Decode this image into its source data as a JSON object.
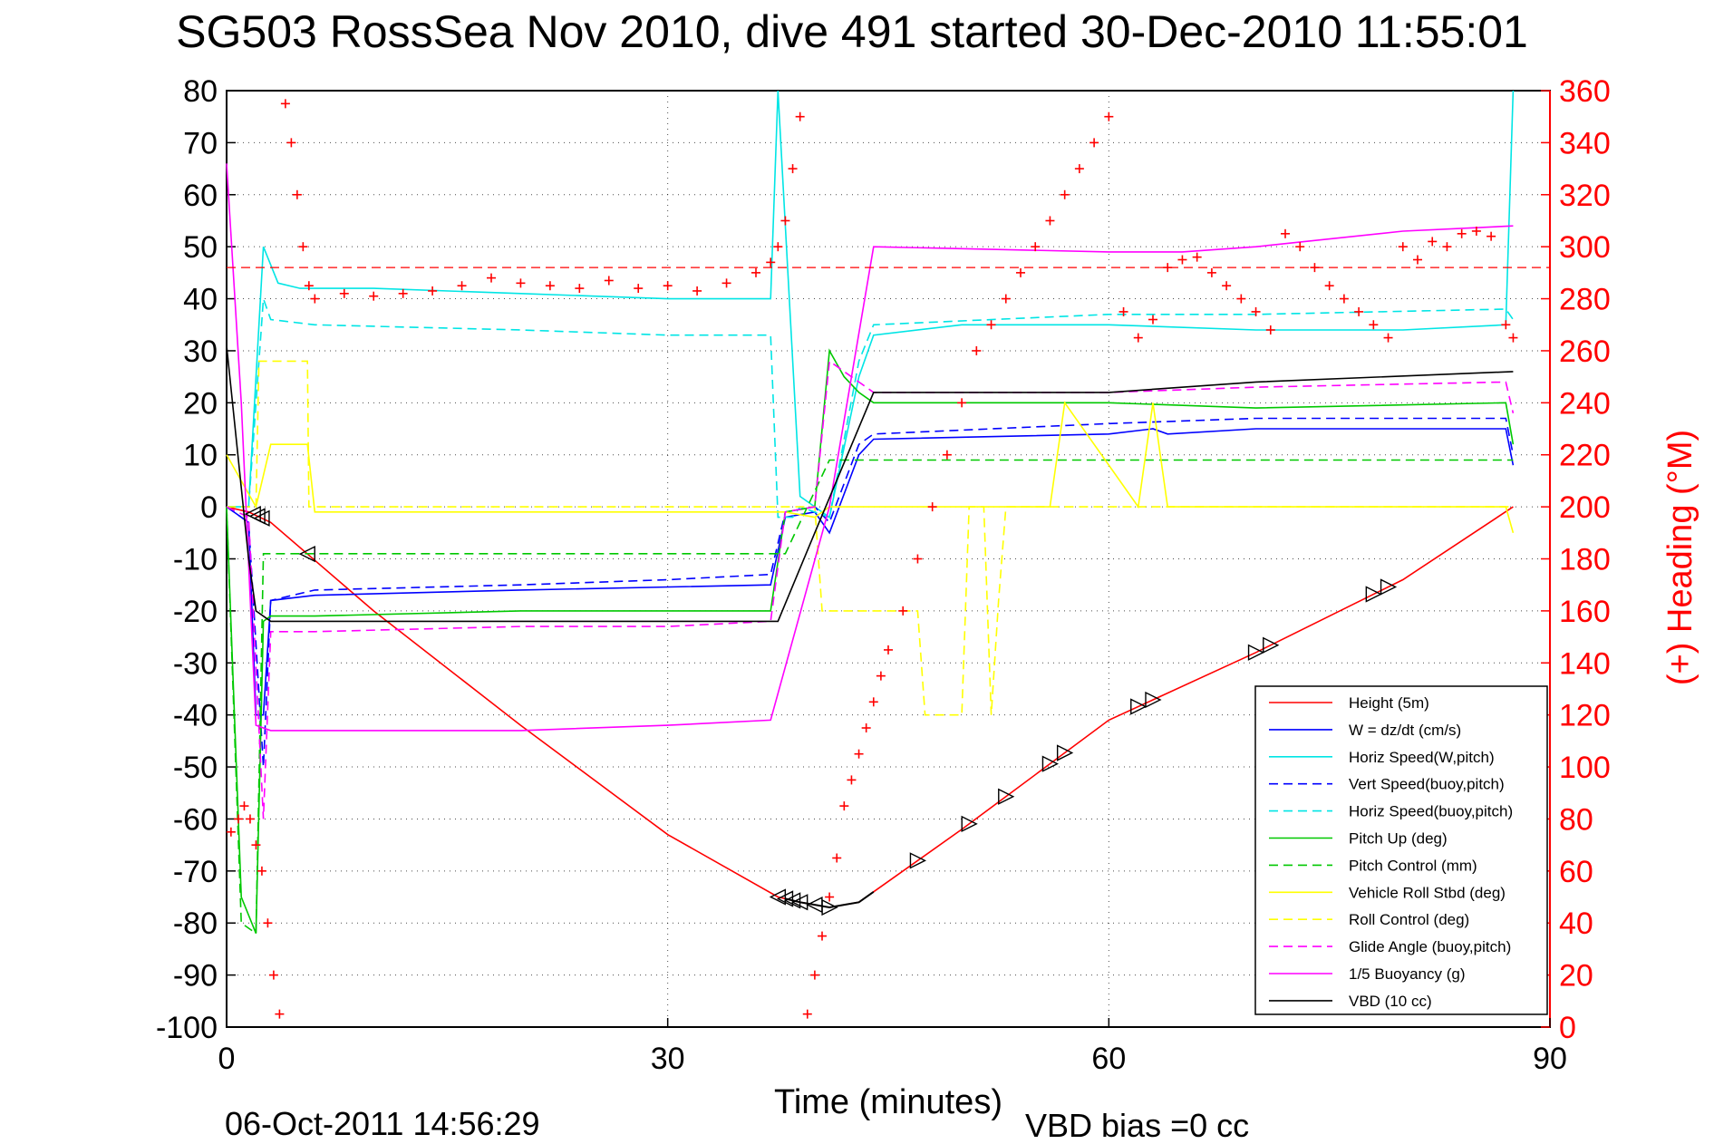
{
  "chart_data": {
    "type": "line",
    "title": "SG503 RossSea Nov 2010, dive 491 started 30-Dec-2010 11:55:01",
    "xlabel": "Time (minutes)",
    "ylabel_right": "(+) Heading (°M)",
    "footer_date": "06-Oct-2011 14:56:29",
    "footer_note": "VBD bias =0 cc",
    "xlim": [
      0,
      90
    ],
    "ylim": [
      -100,
      80
    ],
    "ylim_right": [
      0,
      360
    ],
    "x_ticks": [
      "0",
      "30",
      "60",
      "90"
    ],
    "y_ticks": [
      "80",
      "70",
      "60",
      "50",
      "40",
      "30",
      "20",
      "10",
      "0",
      "-10",
      "-20",
      "-30",
      "-40",
      "-50",
      "-60",
      "-70",
      "-80",
      "-90",
      "-100"
    ],
    "y_ticks_right": [
      "360",
      "340",
      "320",
      "300",
      "280",
      "260",
      "240",
      "220",
      "200",
      "180",
      "160",
      "140",
      "120",
      "100",
      "80",
      "60",
      "40",
      "20",
      "0"
    ],
    "grid": true,
    "legend_position": "bottom-right",
    "colors": {
      "height": "#ff0000",
      "w": "#0000ff",
      "horiz": "#00e5e5",
      "vert_buoy": "#0000ff",
      "horiz_buoy": "#00e5e5",
      "pitch": "#00c800",
      "pitch_ctrl": "#00c800",
      "roll": "#ffff00",
      "roll_ctrl": "#ffff00",
      "glide": "#ff00ff",
      "buoyancy": "#ff00ff",
      "vbd": "#000000",
      "heading": "#ff0000"
    },
    "legend": [
      "Height (5m)",
      "W = dz/dt (cm/s)",
      "Horiz Speed(W,pitch)",
      "Vert Speed(buoy,pitch)",
      "Horiz Speed(buoy,pitch)",
      "Pitch Up (deg)",
      "Pitch Control (mm)",
      "Vehicle Roll Stbd (deg)",
      "Roll Control (deg)",
      "Glide Angle (buoy,pitch)",
      "1/5 Buoyancy (g)",
      "VBD (10 cc)"
    ],
    "series": [
      {
        "name": "Height (5m)",
        "style": "solid",
        "color": "height",
        "x": [
          0,
          1.5,
          3,
          10,
          20,
          30,
          37.5,
          39,
          41,
          43,
          44,
          50,
          60,
          70,
          80,
          87.5
        ],
        "y": [
          0,
          -1,
          -3,
          -20,
          -42,
          -63,
          -75,
          -76,
          -77,
          -76,
          -74,
          -62,
          -41,
          -28,
          -14,
          0
        ]
      },
      {
        "name": "W = dz/dt (cm/s)",
        "style": "solid",
        "color": "w",
        "x": [
          0,
          1.5,
          2,
          2.5,
          3,
          6,
          20,
          37,
          38,
          40,
          41,
          43,
          44,
          60,
          63,
          64,
          70,
          87,
          87.5
        ],
        "y": [
          0,
          -3,
          -40,
          -40,
          -18,
          -17,
          -16,
          -15,
          -2,
          -1,
          -5,
          10,
          13,
          14,
          15,
          14,
          15,
          15,
          8
        ]
      },
      {
        "name": "Horiz Speed(W,pitch)",
        "style": "solid",
        "color": "horiz",
        "x": [
          0,
          1.5,
          2.5,
          3.5,
          5,
          10,
          20,
          30,
          37,
          37.5,
          39,
          40,
          41,
          43,
          44,
          50,
          60,
          70,
          80,
          87,
          87.5
        ],
        "y": [
          0,
          0,
          50,
          43,
          42,
          42,
          41,
          40,
          40,
          80,
          2,
          0,
          -2,
          25,
          33,
          35,
          35,
          34,
          34,
          35,
          80
        ]
      },
      {
        "name": "Vert Speed(buoy,pitch)",
        "style": "dashed",
        "color": "vert_buoy",
        "x": [
          0,
          1.5,
          2.5,
          3,
          6,
          20,
          30,
          37,
          38,
          40,
          41,
          43,
          44,
          60,
          70,
          87,
          87.5
        ],
        "y": [
          0,
          -3,
          -50,
          -18,
          -16,
          -15,
          -14,
          -13,
          -1,
          0,
          -3,
          12,
          14,
          16,
          17,
          17,
          10
        ]
      },
      {
        "name": "Horiz Speed(buoy,pitch)",
        "style": "dashed",
        "color": "horiz_buoy",
        "x": [
          0,
          1.5,
          2.5,
          3,
          6,
          20,
          30,
          37,
          37.5,
          38.5,
          39,
          41,
          43,
          44,
          60,
          70,
          87,
          87.5
        ],
        "y": [
          0,
          0,
          40,
          36,
          35,
          34,
          33,
          33,
          -2,
          -2,
          0,
          -2,
          28,
          35,
          37,
          37,
          38,
          36
        ]
      },
      {
        "name": "Pitch Up (deg)",
        "style": "solid",
        "color": "pitch",
        "x": [
          0,
          1,
          2,
          2.5,
          3,
          6,
          20,
          30,
          37,
          38,
          40,
          41,
          42,
          43,
          44,
          60,
          70,
          87,
          87.5
        ],
        "y": [
          0,
          -75,
          -82,
          -22,
          -21,
          -21,
          -20,
          -20,
          -20,
          -1,
          0,
          30,
          25,
          22,
          20,
          20,
          19,
          20,
          12
        ]
      },
      {
        "name": "Pitch Control (mm)",
        "style": "dashed",
        "color": "pitch_ctrl",
        "x": [
          0,
          1,
          2,
          2.5,
          3,
          37,
          38,
          41,
          87.5
        ],
        "y": [
          0,
          -80,
          -82,
          -9,
          -9,
          -9,
          -9,
          9,
          9
        ]
      },
      {
        "name": "Vehicle Roll Stbd (deg)",
        "style": "solid",
        "color": "roll",
        "x": [
          0,
          2,
          3,
          5.5,
          6,
          37,
          38,
          40,
          41,
          44,
          53,
          54,
          56,
          57,
          62,
          63,
          64,
          87,
          87.5
        ],
        "y": [
          10,
          0,
          12,
          12,
          -1,
          -1,
          -1,
          -2,
          0,
          0,
          0,
          0,
          0,
          20,
          0,
          20,
          0,
          0,
          -5
        ]
      },
      {
        "name": "Roll Control (deg)",
        "style": "dashed",
        "color": "roll_ctrl",
        "x": [
          0,
          2,
          2.2,
          5.5,
          5.6,
          37,
          40,
          40.5,
          43,
          47,
          47.5,
          50,
          50.5,
          51.5,
          52,
          52.5,
          53,
          56,
          57,
          87.5
        ],
        "y": [
          0,
          0,
          28,
          28,
          0,
          0,
          0,
          -20,
          -20,
          -20,
          -40,
          -40,
          0,
          0,
          -40,
          -18,
          0,
          0,
          0,
          0
        ]
      },
      {
        "name": "Glide Angle (buoy,pitch)",
        "style": "dashed",
        "color": "glide",
        "x": [
          0,
          1.5,
          2.5,
          3,
          6,
          20,
          30,
          37,
          38,
          40,
          41,
          43,
          44,
          60,
          70,
          87,
          87.5
        ],
        "y": [
          0,
          -2,
          -60,
          -24,
          -24,
          -23,
          -23,
          -22,
          -1,
          0,
          28,
          24,
          22,
          22,
          23,
          24,
          18
        ]
      },
      {
        "name": "1/5 Buoyancy (g)",
        "style": "solid",
        "color": "buoyancy",
        "x": [
          0,
          1,
          2,
          3,
          10,
          20,
          30,
          37,
          41,
          44,
          60,
          65,
          70,
          80,
          87.5
        ],
        "y": [
          66,
          20,
          -42,
          -43,
          -43,
          -43,
          -42,
          -41,
          0,
          50,
          49,
          49,
          50,
          53,
          54
        ]
      },
      {
        "name": "VBD (10 cc)",
        "style": "solid",
        "color": "vbd",
        "x": [
          0,
          1.5,
          2,
          3,
          20,
          37,
          37.5,
          40,
          44,
          60,
          70,
          87.5
        ],
        "y": [
          31,
          -10,
          -20,
          -22,
          -22,
          -22,
          -22,
          -5,
          22,
          22,
          24,
          26
        ]
      }
    ],
    "heading": {
      "name": "(+) Heading (°M)",
      "reference": 292,
      "x": [
        0.3,
        0.8,
        1.2,
        1.6,
        2.0,
        2.4,
        2.8,
        3.2,
        3.6,
        4.0,
        4.4,
        4.8,
        5.2,
        5.6,
        6,
        8,
        10,
        12,
        14,
        16,
        18,
        20,
        22,
        24,
        26,
        28,
        30,
        32,
        34,
        36,
        37,
        37.5,
        38,
        38.5,
        39,
        39.5,
        40,
        40.5,
        41,
        41.5,
        42,
        42.5,
        43,
        43.5,
        44,
        44.5,
        45,
        46,
        47,
        48,
        49,
        50,
        51,
        52,
        53,
        54,
        55,
        56,
        57,
        58,
        59,
        60,
        61,
        62,
        63,
        64,
        65,
        66,
        67,
        68,
        69,
        70,
        71,
        72,
        73,
        74,
        75,
        76,
        77,
        78,
        79,
        80,
        81,
        82,
        83,
        84,
        85,
        86,
        87,
        87.5
      ],
      "y": [
        75,
        80,
        85,
        80,
        70,
        60,
        40,
        20,
        5,
        355,
        340,
        320,
        300,
        285,
        280,
        282,
        281,
        282,
        283,
        285,
        288,
        286,
        285,
        284,
        287,
        284,
        285,
        283,
        286,
        290,
        294,
        300,
        310,
        330,
        350,
        5,
        20,
        35,
        50,
        65,
        85,
        95,
        105,
        115,
        125,
        135,
        145,
        160,
        180,
        200,
        220,
        240,
        260,
        270,
        280,
        290,
        300,
        310,
        320,
        330,
        340,
        350,
        275,
        265,
        272,
        292,
        295,
        296,
        290,
        285,
        280,
        275,
        268,
        305,
        300,
        292,
        285,
        280,
        275,
        270,
        265,
        300,
        295,
        302,
        300,
        305,
        306,
        304,
        270,
        265
      ]
    }
  }
}
